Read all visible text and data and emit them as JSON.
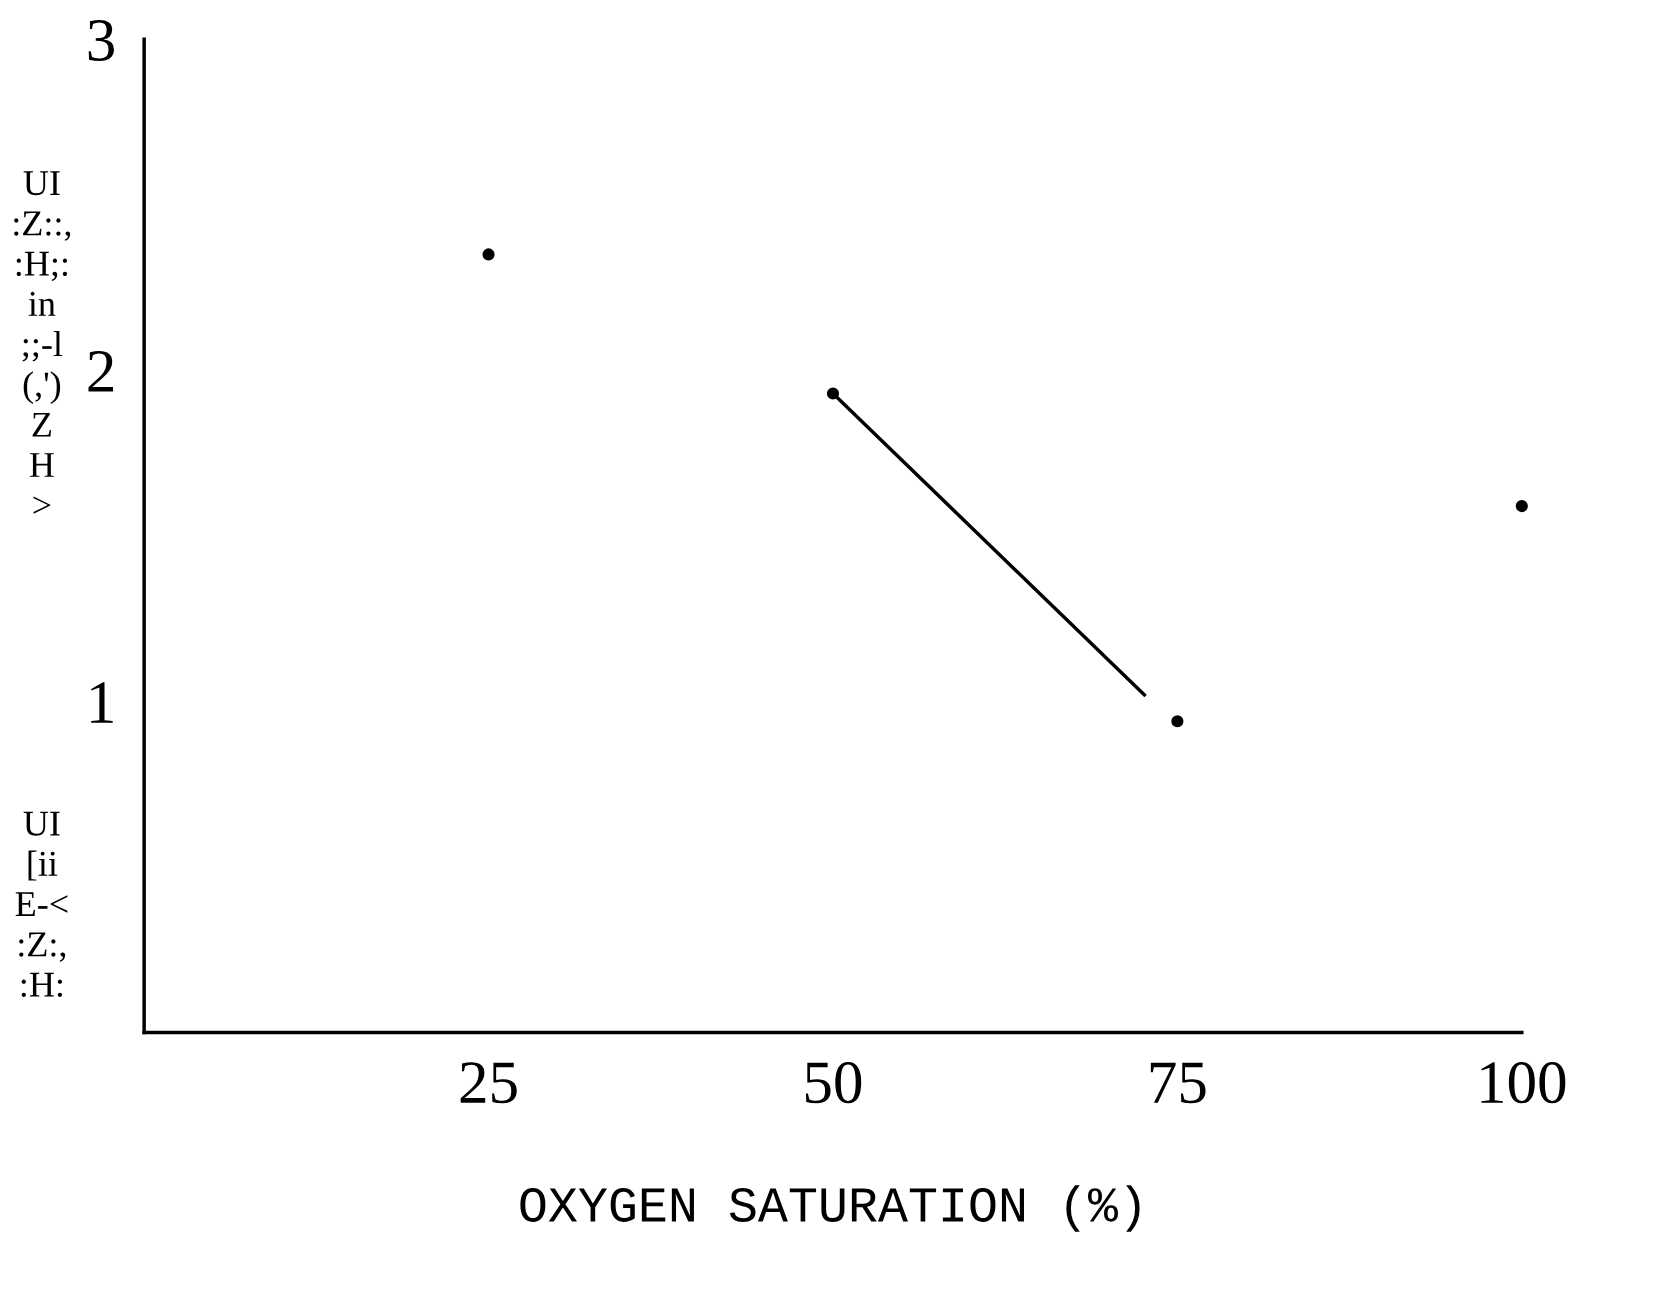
{
  "chart_data": {
    "type": "scatter",
    "xlabel": "OXYGEN SATURATION (%)",
    "annotations": [
      "UI\n:Z::,\n:H;:\nin\n;;-l\n(,')\nZ\nH\n>",
      "UI\n[ii\nE-<\n:Z:,\n:H:"
    ],
    "series": [
      {
        "color": "#000000",
        "x": [
          25,
          50,
          75,
          100
        ],
        "values": [
          2.35,
          1.93,
          0.94,
          1.59
        ],
        "marker": "circle"
      },
      {
        "type": "line",
        "color": "#000000",
        "x": [
          50,
          72.6
        ],
        "values": [
          1.93,
          1.02
        ],
        "marker": "none",
        "line_style": "solid"
      }
    ],
    "xlim": [
      0,
      100
    ],
    "ylim": [
      0,
      3
    ],
    "xticks": [
      25,
      50,
      75,
      100
    ],
    "yticks": [
      1,
      2,
      3
    ],
    "grid": false,
    "legend": false
  }
}
